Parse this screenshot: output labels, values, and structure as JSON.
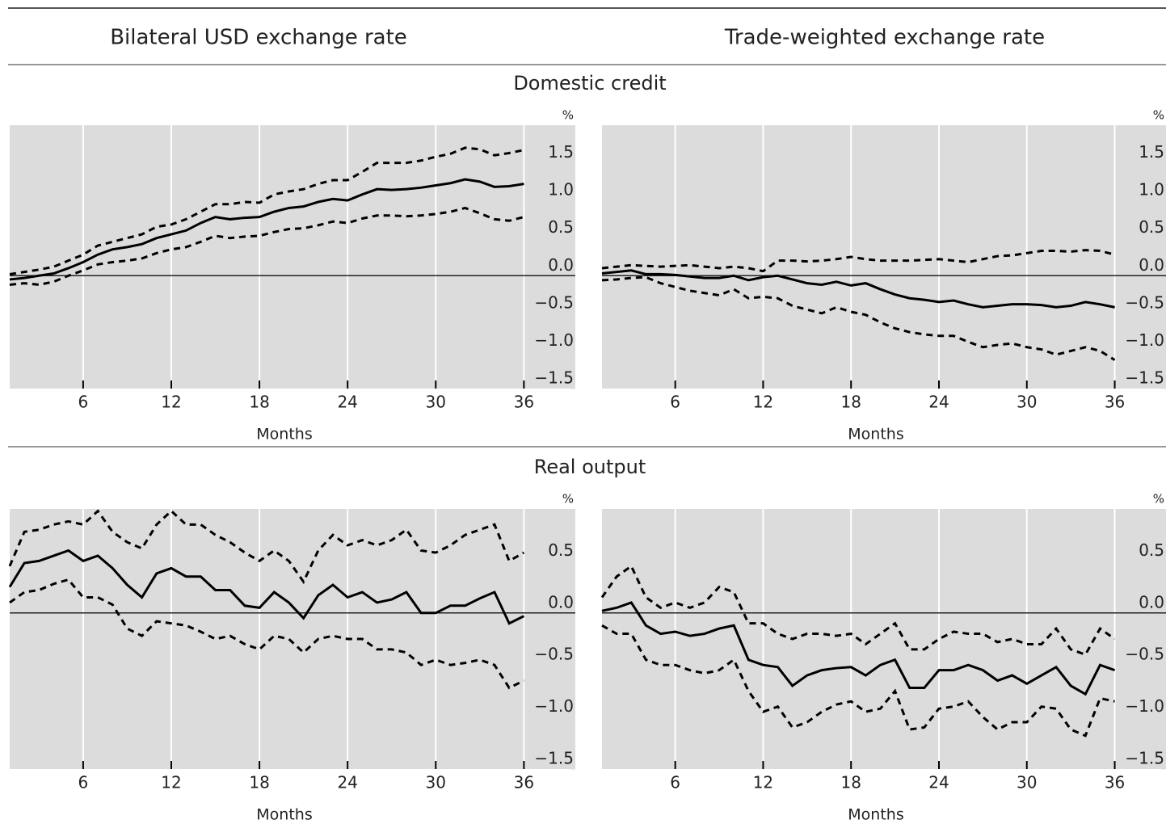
{
  "column_titles": [
    "Bilateral USD exchange rate",
    "Trade-weighted exchange rate"
  ],
  "section_titles": [
    "Domestic credit",
    "Real output"
  ],
  "chart_data": [
    {
      "type": "line",
      "x_label": "Months",
      "unit": "%",
      "xlim": [
        1,
        39.5
      ],
      "ylim": [
        -1.5,
        2.0
      ],
      "xticks": [
        6,
        12,
        18,
        24,
        30,
        36
      ],
      "yticks": [
        {
          "value": -1.5,
          "label": "−1.5"
        },
        {
          "value": -1,
          "label": "−1.0"
        },
        {
          "value": -0.5,
          "label": "−0.5"
        },
        {
          "value": 0,
          "label": "0.0"
        },
        0.5,
        {
          "value": 1,
          "label": "1.0"
        },
        1.5
      ],
      "grid": "x",
      "background": "#dcdcdc",
      "x": [
        1,
        2,
        3,
        4,
        5,
        6,
        7,
        8,
        9,
        10,
        11,
        12,
        13,
        14,
        15,
        16,
        17,
        18,
        19,
        20,
        21,
        22,
        23,
        24,
        25,
        26,
        27,
        28,
        29,
        30,
        31,
        32,
        33,
        34,
        35,
        36
      ],
      "series": [
        {
          "color": "#000000",
          "style": "solid",
          "values": [
            -0.05,
            -0.03,
            0.0,
            0.03,
            0.1,
            0.18,
            0.28,
            0.35,
            0.38,
            0.42,
            0.5,
            0.55,
            0.6,
            0.7,
            0.78,
            0.75,
            0.77,
            0.78,
            0.85,
            0.9,
            0.92,
            0.98,
            1.02,
            1.0,
            1.08,
            1.15,
            1.14,
            1.15,
            1.17,
            1.2,
            1.23,
            1.28,
            1.25,
            1.18,
            1.19,
            1.22
          ]
        },
        {
          "color": "#000000",
          "style": "dashed",
          "values": [
            0.02,
            0.05,
            0.08,
            0.12,
            0.2,
            0.28,
            0.4,
            0.45,
            0.5,
            0.55,
            0.65,
            0.68,
            0.75,
            0.85,
            0.95,
            0.95,
            0.98,
            0.97,
            1.08,
            1.12,
            1.15,
            1.22,
            1.27,
            1.27,
            1.38,
            1.5,
            1.5,
            1.5,
            1.53,
            1.58,
            1.62,
            1.7,
            1.68,
            1.6,
            1.63,
            1.67
          ]
        },
        {
          "color": "#000000",
          "style": "dashed",
          "values": [
            -0.12,
            -0.1,
            -0.12,
            -0.08,
            0.0,
            0.07,
            0.15,
            0.18,
            0.2,
            0.23,
            0.3,
            0.35,
            0.38,
            0.45,
            0.53,
            0.5,
            0.52,
            0.53,
            0.58,
            0.62,
            0.63,
            0.67,
            0.72,
            0.7,
            0.76,
            0.8,
            0.8,
            0.79,
            0.8,
            0.82,
            0.85,
            0.9,
            0.83,
            0.75,
            0.73,
            0.78
          ]
        }
      ]
    },
    {
      "type": "line",
      "x_label": "Months",
      "unit": "%",
      "xlim": [
        1,
        39.5
      ],
      "ylim": [
        -1.5,
        2.0
      ],
      "xticks": [
        6,
        12,
        18,
        24,
        30,
        36
      ],
      "yticks": [
        {
          "value": -1.5,
          "label": "−1.5"
        },
        {
          "value": -1,
          "label": "−1.0"
        },
        {
          "value": -0.5,
          "label": "−0.5"
        },
        {
          "value": 0,
          "label": "0.0"
        },
        0.5,
        {
          "value": 1,
          "label": "1.0"
        },
        1.5
      ],
      "grid": "x",
      "background": "#dcdcdc",
      "x": [
        1,
        2,
        3,
        4,
        5,
        6,
        7,
        8,
        9,
        10,
        11,
        12,
        13,
        14,
        15,
        16,
        17,
        18,
        19,
        20,
        21,
        22,
        23,
        24,
        25,
        26,
        27,
        28,
        29,
        30,
        31,
        32,
        33,
        34,
        35,
        36
      ],
      "series": [
        {
          "color": "#000000",
          "style": "solid",
          "values": [
            0.03,
            0.05,
            0.07,
            0.02,
            0.02,
            0.01,
            -0.01,
            -0.03,
            -0.03,
            0.0,
            -0.06,
            -0.02,
            0.0,
            -0.05,
            -0.1,
            -0.12,
            -0.08,
            -0.13,
            -0.1,
            -0.18,
            -0.25,
            -0.3,
            -0.32,
            -0.35,
            -0.33,
            -0.38,
            -0.42,
            -0.4,
            -0.38,
            -0.38,
            -0.39,
            -0.42,
            -0.4,
            -0.35,
            -0.38,
            -0.42
          ]
        },
        {
          "color": "#000000",
          "style": "dashed",
          "values": [
            0.1,
            0.12,
            0.14,
            0.13,
            0.12,
            0.13,
            0.14,
            0.12,
            0.1,
            0.12,
            0.1,
            0.06,
            0.2,
            0.2,
            0.19,
            0.2,
            0.22,
            0.25,
            0.22,
            0.2,
            0.2,
            0.2,
            0.21,
            0.22,
            0.2,
            0.18,
            0.22,
            0.26,
            0.27,
            0.3,
            0.33,
            0.33,
            0.32,
            0.34,
            0.33,
            0.28
          ]
        },
        {
          "color": "#000000",
          "style": "dashed",
          "values": [
            -0.06,
            -0.05,
            -0.03,
            -0.02,
            -0.1,
            -0.15,
            -0.2,
            -0.23,
            -0.26,
            -0.18,
            -0.3,
            -0.28,
            -0.3,
            -0.4,
            -0.45,
            -0.5,
            -0.42,
            -0.48,
            -0.52,
            -0.62,
            -0.7,
            -0.75,
            -0.78,
            -0.8,
            -0.8,
            -0.88,
            -0.95,
            -0.92,
            -0.9,
            -0.95,
            -0.98,
            -1.05,
            -1.0,
            -0.95,
            -1.0,
            -1.12
          ]
        }
      ]
    },
    {
      "type": "line",
      "x_label": "Months",
      "unit": "%",
      "xlim": [
        1,
        39.5
      ],
      "ylim": [
        -1.5,
        1.0
      ],
      "xticks": [
        6,
        12,
        18,
        24,
        30,
        36
      ],
      "yticks": [
        {
          "value": -1.5,
          "label": "−1.5"
        },
        {
          "value": -1,
          "label": "−1.0"
        },
        {
          "value": -0.5,
          "label": "−0.5"
        },
        {
          "value": 0,
          "label": "0.0"
        },
        0.5
      ],
      "grid": "x",
      "background": "#dcdcdc",
      "x": [
        1,
        2,
        3,
        4,
        5,
        6,
        7,
        8,
        9,
        10,
        11,
        12,
        13,
        14,
        15,
        16,
        17,
        18,
        19,
        20,
        21,
        22,
        23,
        24,
        25,
        26,
        27,
        28,
        29,
        30,
        31,
        32,
        33,
        34,
        35,
        36
      ],
      "series": [
        {
          "color": "#000000",
          "style": "solid",
          "values": [
            0.25,
            0.48,
            0.5,
            0.55,
            0.6,
            0.5,
            0.55,
            0.43,
            0.27,
            0.15,
            0.38,
            0.43,
            0.35,
            0.35,
            0.22,
            0.22,
            0.07,
            0.05,
            0.2,
            0.1,
            -0.05,
            0.17,
            0.27,
            0.15,
            0.2,
            0.1,
            0.13,
            0.2,
            0.0,
            0.0,
            0.07,
            0.07,
            0.14,
            0.2,
            -0.1,
            -0.03
          ]
        },
        {
          "color": "#000000",
          "style": "dashed",
          "values": [
            0.45,
            0.78,
            0.8,
            0.85,
            0.88,
            0.85,
            0.98,
            0.78,
            0.68,
            0.62,
            0.85,
            0.98,
            0.85,
            0.85,
            0.75,
            0.68,
            0.58,
            0.5,
            0.6,
            0.5,
            0.3,
            0.6,
            0.75,
            0.65,
            0.7,
            0.65,
            0.7,
            0.8,
            0.6,
            0.58,
            0.65,
            0.75,
            0.8,
            0.85,
            0.5,
            0.58
          ]
        },
        {
          "color": "#000000",
          "style": "dashed",
          "values": [
            0.1,
            0.2,
            0.22,
            0.28,
            0.32,
            0.15,
            0.15,
            0.08,
            -0.15,
            -0.22,
            -0.08,
            -0.1,
            -0.12,
            -0.18,
            -0.25,
            -0.22,
            -0.3,
            -0.35,
            -0.22,
            -0.25,
            -0.38,
            -0.25,
            -0.22,
            -0.25,
            -0.25,
            -0.35,
            -0.35,
            -0.38,
            -0.5,
            -0.45,
            -0.5,
            -0.48,
            -0.45,
            -0.5,
            -0.72,
            -0.65
          ]
        }
      ]
    },
    {
      "type": "line",
      "x_label": "Months",
      "unit": "%",
      "xlim": [
        1,
        39.5
      ],
      "ylim": [
        -1.5,
        1.0
      ],
      "xticks": [
        6,
        12,
        18,
        24,
        30,
        36
      ],
      "yticks": [
        {
          "value": -1.5,
          "label": "−1.5"
        },
        {
          "value": -1,
          "label": "−1.0"
        },
        {
          "value": -0.5,
          "label": "−0.5"
        },
        {
          "value": 0,
          "label": "0.0"
        },
        0.5
      ],
      "grid": "x",
      "background": "#dcdcdc",
      "x": [
        1,
        2,
        3,
        4,
        5,
        6,
        7,
        8,
        9,
        10,
        11,
        12,
        13,
        14,
        15,
        16,
        17,
        18,
        19,
        20,
        21,
        22,
        23,
        24,
        25,
        26,
        27,
        28,
        29,
        30,
        31,
        32,
        33,
        34,
        35,
        36
      ],
      "series": [
        {
          "color": "#000000",
          "style": "solid",
          "values": [
            0.02,
            0.05,
            0.1,
            -0.12,
            -0.2,
            -0.18,
            -0.22,
            -0.2,
            -0.15,
            -0.12,
            -0.45,
            -0.5,
            -0.52,
            -0.7,
            -0.6,
            -0.55,
            -0.53,
            -0.52,
            -0.6,
            -0.5,
            -0.45,
            -0.72,
            -0.72,
            -0.55,
            -0.55,
            -0.5,
            -0.55,
            -0.65,
            -0.6,
            -0.68,
            -0.6,
            -0.52,
            -0.7,
            -0.78,
            -0.5,
            -0.55
          ]
        },
        {
          "color": "#000000",
          "style": "dashed",
          "values": [
            0.15,
            0.35,
            0.45,
            0.15,
            0.05,
            0.1,
            0.05,
            0.1,
            0.25,
            0.2,
            -0.1,
            -0.1,
            -0.2,
            -0.25,
            -0.2,
            -0.2,
            -0.22,
            -0.2,
            -0.3,
            -0.2,
            -0.1,
            -0.35,
            -0.35,
            -0.25,
            -0.18,
            -0.2,
            -0.2,
            -0.28,
            -0.25,
            -0.3,
            -0.3,
            -0.15,
            -0.35,
            -0.4,
            -0.15,
            -0.25
          ]
        },
        {
          "color": "#000000",
          "style": "dashed",
          "values": [
            -0.12,
            -0.2,
            -0.2,
            -0.45,
            -0.5,
            -0.5,
            -0.55,
            -0.58,
            -0.55,
            -0.45,
            -0.75,
            -0.95,
            -0.9,
            -1.1,
            -1.05,
            -0.95,
            -0.88,
            -0.85,
            -0.95,
            -0.92,
            -0.75,
            -1.12,
            -1.1,
            -0.92,
            -0.9,
            -0.85,
            -1.0,
            -1.12,
            -1.05,
            -1.05,
            -0.9,
            -0.92,
            -1.12,
            -1.18,
            -0.82,
            -0.85
          ]
        }
      ]
    }
  ]
}
